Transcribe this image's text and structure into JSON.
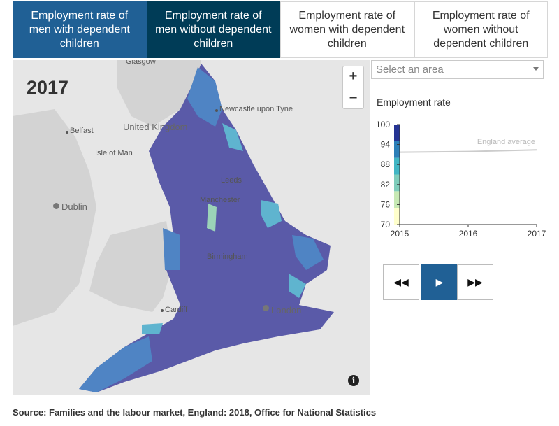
{
  "tabs": [
    {
      "label": "Employment rate of men with dependent children",
      "style": "t1"
    },
    {
      "label": "Employment rate of men without dependent children",
      "style": "t2"
    },
    {
      "label": "Employment rate of women with dependent children",
      "style": ""
    },
    {
      "label": "Employment rate of women without dependent children",
      "style": ""
    }
  ],
  "map": {
    "year": "2017",
    "zoom_in": "+",
    "zoom_out": "−",
    "info": "i",
    "place_labels": {
      "glasgow": "Glasgow",
      "newcastle": "Newcastle upon Tyne",
      "belfast": "Belfast",
      "uk": "United Kingdom",
      "isle_of_man": "Isle of Man",
      "leeds": "Leeds",
      "manchester": "Manchester",
      "dublin": "Dublin",
      "birmingham": "Birmingham",
      "cardiff": "Cardiff",
      "london": "London"
    },
    "colors": {
      "sea": "#e6e6e6",
      "land": "#d3d3d3",
      "dark": "#5a5aa8",
      "mid": "#4f84c4",
      "light": "#5fb4cf",
      "pale": "#9bd3b8"
    }
  },
  "area_select": {
    "placeholder": "Select an area"
  },
  "chart_data": {
    "type": "line",
    "title": "Employment rate",
    "x": [
      2015,
      2016,
      2017
    ],
    "x_tick_labels": [
      "2015",
      "2016",
      "2017"
    ],
    "ylim": [
      70,
      100
    ],
    "y_ticks": [
      70,
      76,
      82,
      88,
      94,
      100
    ],
    "series": [
      {
        "name": "England average",
        "values": [
          91.7,
          91.9,
          92.4
        ],
        "color": "#cccccc"
      }
    ],
    "legend_scale_colors": [
      "#ffffcc",
      "#c7e9b4",
      "#7fcdbb",
      "#41b6c4",
      "#2c7fb8",
      "#253494"
    ]
  },
  "controls": {
    "prev": "◀◀",
    "play": "▶",
    "next": "▶▶"
  },
  "source": "Source: Families and the labour market, England: 2018, Office for National Statistics"
}
